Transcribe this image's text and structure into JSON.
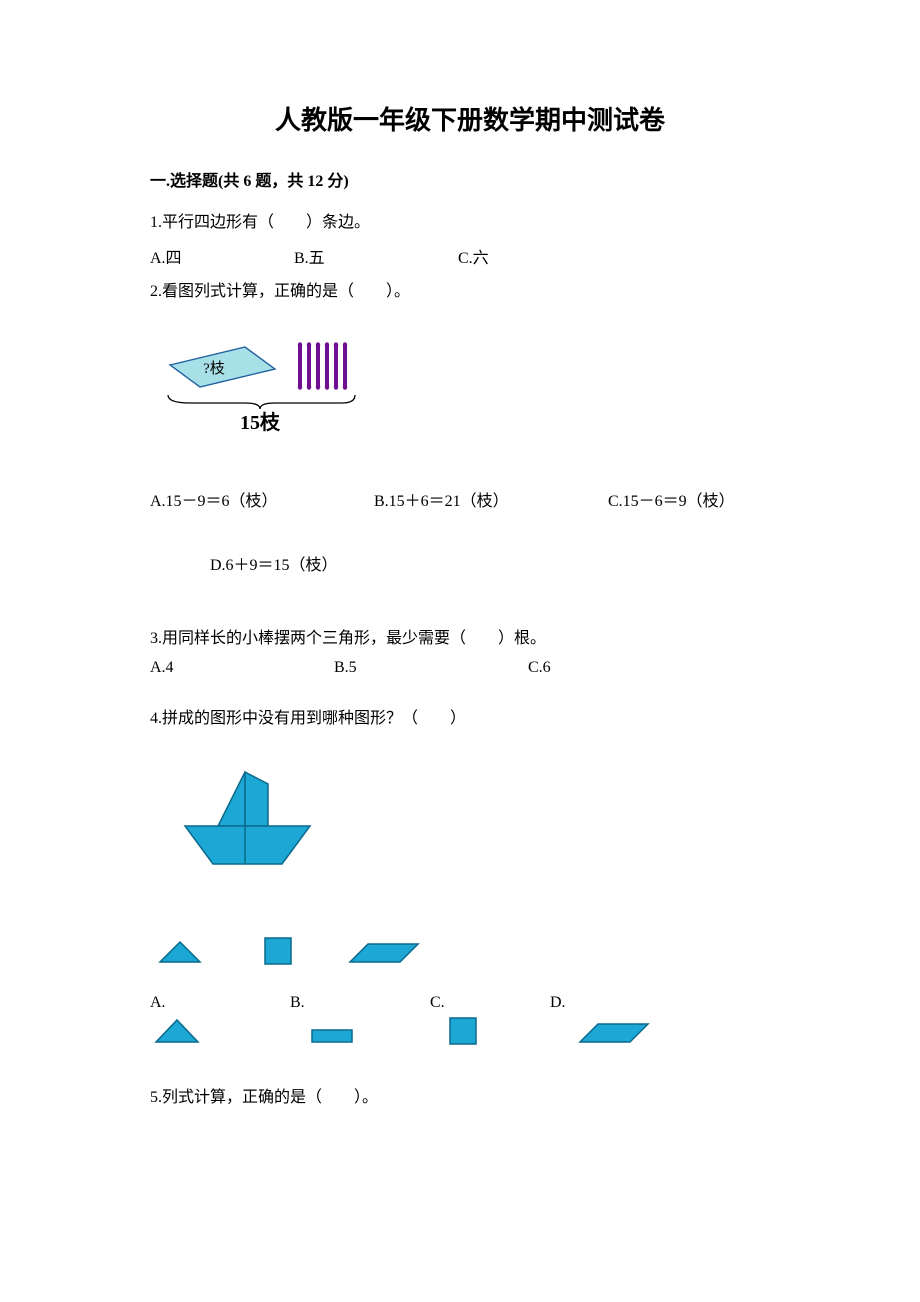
{
  "title": "人教版一年级下册数学期中测试卷",
  "section1": {
    "header": "一.选择题(共 6 题，共 12 分)"
  },
  "q1": {
    "text": "1.平行四边形有（　　）条边。",
    "optA": "A.四",
    "optB": "B.五",
    "optC": "C.六"
  },
  "q2": {
    "text": "2.看图列式计算，正确的是（　　）。",
    "diagram": {
      "box_label": "?枝",
      "total_label": "15枝",
      "box_fill": "#a8e0e8",
      "box_stroke": "#2060a0",
      "stick_color": "#701090",
      "sticks": 6,
      "text_color": "#000000"
    },
    "optA": "A.15－9＝6（枝）",
    "optB": "B.15＋6＝21（枝）",
    "optC": "C.15－6＝9（枝）",
    "optD": "D.6＋9＝15（枝）"
  },
  "q3": {
    "text": "3.用同样长的小棒摆两个三角形，最少需要（　　）根。",
    "optA": "A.4",
    "optB": "B.5",
    "optC": "C.6"
  },
  "q4": {
    "text": "4.拼成的图形中没有用到哪种图形？（　　）",
    "colors": {
      "shape_fill": "#1ca7d4",
      "shape_stroke": "#0a6a8c"
    },
    "optA": "A.",
    "optB": "B.",
    "optC": "C.",
    "optD": "D."
  },
  "q5": {
    "text": "5.列式计算，正确的是（　　）。"
  }
}
